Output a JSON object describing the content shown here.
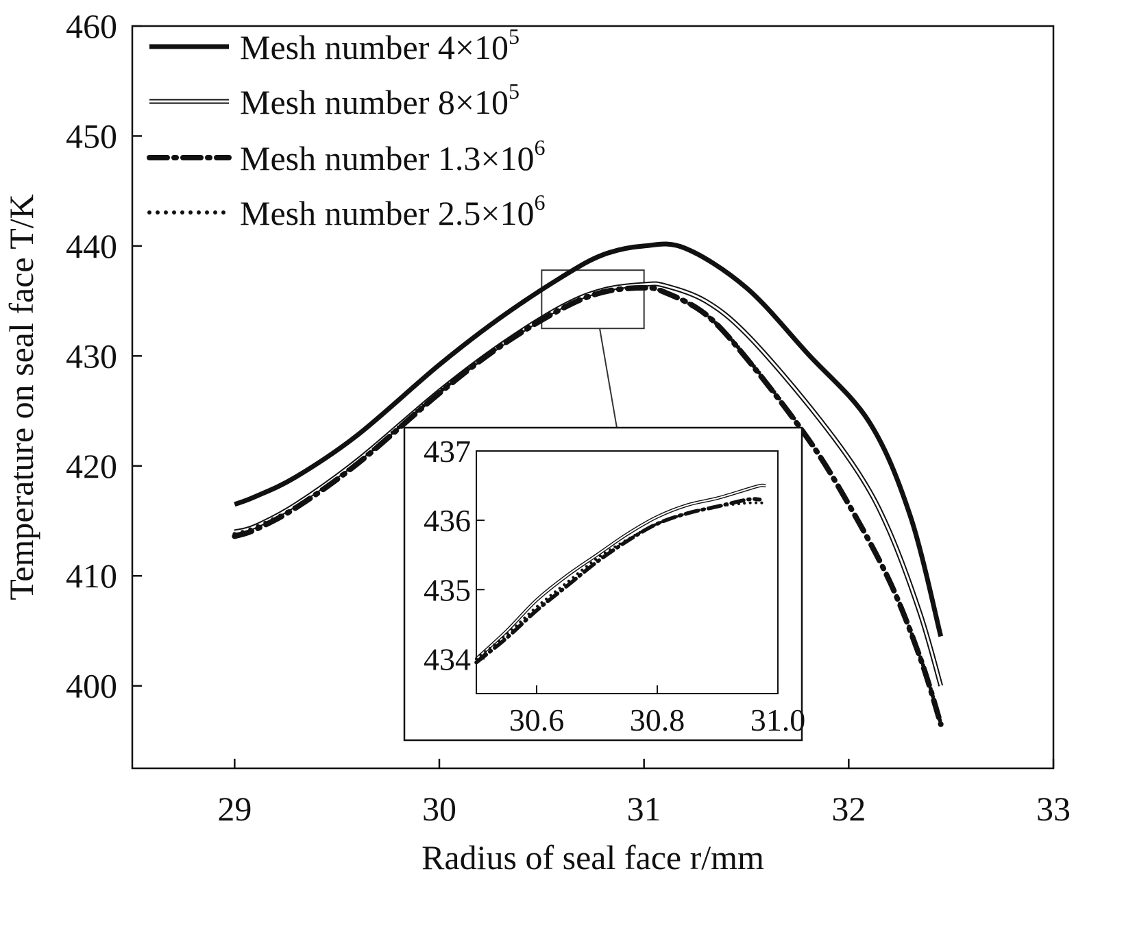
{
  "chart_data": {
    "type": "line",
    "xlabel": "Radius of seal face r/mm",
    "ylabel": "Temperature on seal face T/K",
    "xlim": [
      28.5,
      33
    ],
    "ylim": [
      392.5,
      460
    ],
    "xticks": [
      "29",
      "30",
      "31",
      "32",
      "33"
    ],
    "yticks": [
      "400",
      "410",
      "420",
      "430",
      "440",
      "450",
      "460"
    ],
    "legend_position": "top-left",
    "series": [
      {
        "name": "Mesh number 4×10^5",
        "legend_label": "Mesh number 4×10",
        "legend_exponent": "5",
        "style": "solid-thick",
        "x": [
          29.0,
          29.1,
          29.3,
          29.6,
          30.0,
          30.3,
          30.6,
          30.8,
          31.0,
          31.2,
          31.5,
          31.8,
          32.1,
          32.3,
          32.45
        ],
        "y": [
          416.5,
          417.2,
          419.0,
          422.8,
          429.2,
          433.5,
          437.2,
          439.2,
          440.0,
          439.8,
          436.2,
          430.2,
          424.0,
          415.5,
          404.5
        ]
      },
      {
        "name": "Mesh number 8×10^5",
        "legend_label": "Mesh number 8×10",
        "legend_exponent": "5",
        "style": "double-line",
        "x": [
          29.0,
          29.1,
          29.3,
          29.6,
          30.0,
          30.3,
          30.6,
          30.8,
          31.0,
          31.1,
          31.3,
          31.5,
          31.8,
          32.05,
          32.2,
          32.35,
          32.45
        ],
        "y": [
          414.0,
          414.5,
          416.5,
          420.5,
          426.8,
          431.0,
          434.5,
          436.0,
          436.5,
          436.4,
          435.0,
          432.0,
          425.6,
          419.3,
          414.0,
          406.5,
          400.0
        ]
      },
      {
        "name": "Mesh number 1.3×10^6",
        "legend_label": "Mesh number 1.3×10",
        "legend_exponent": "6",
        "style": "dash-dot",
        "x": [
          29.0,
          29.1,
          29.3,
          29.6,
          30.0,
          30.3,
          30.6,
          30.8,
          31.0,
          31.1,
          31.3,
          31.5,
          31.8,
          32.0,
          32.2,
          32.35,
          32.45
        ],
        "y": [
          413.6,
          414.2,
          416.2,
          420.2,
          426.6,
          430.9,
          434.3,
          435.8,
          436.2,
          435.8,
          433.8,
          429.8,
          422.5,
          416.5,
          409.5,
          402.5,
          396.5
        ]
      },
      {
        "name": "Mesh number 2.5×10^6",
        "legend_label": "Mesh number 2.5×10",
        "legend_exponent": "6",
        "style": "dotted",
        "x": [
          29.0,
          29.1,
          29.3,
          29.6,
          30.0,
          30.3,
          30.6,
          30.8,
          31.0,
          31.1,
          31.3,
          31.5,
          31.8,
          32.0,
          32.2,
          32.35,
          32.45
        ],
        "y": [
          413.8,
          414.4,
          416.3,
          420.3,
          426.7,
          431.0,
          434.4,
          435.9,
          436.2,
          435.8,
          433.8,
          429.9,
          422.6,
          416.6,
          409.6,
          402.6,
          396.6
        ]
      }
    ],
    "inset": {
      "xlim": [
        30.5,
        31.0
      ],
      "ylim": [
        433.5,
        437
      ],
      "xticks": [
        "30.6",
        "30.8",
        "31.0"
      ],
      "yticks": [
        "434",
        "435",
        "436",
        "437"
      ],
      "zoom_region": {
        "x": [
          30.5,
          31.0
        ],
        "y": [
          432.5,
          437.8
        ]
      },
      "series": [
        {
          "style": "double-line",
          "x": [
            30.5,
            30.55,
            30.6,
            30.65,
            30.7,
            30.75,
            30.8,
            30.85,
            30.9,
            30.95,
            30.97,
            30.98
          ],
          "y": [
            434.0,
            434.4,
            434.85,
            435.2,
            435.5,
            435.8,
            436.05,
            436.22,
            436.32,
            436.45,
            436.5,
            436.5
          ]
        },
        {
          "style": "dash-dot",
          "x": [
            30.5,
            30.55,
            30.6,
            30.65,
            30.7,
            30.75,
            30.8,
            30.85,
            30.9,
            30.95,
            30.97
          ],
          "y": [
            433.95,
            434.3,
            434.7,
            435.05,
            435.4,
            435.7,
            435.95,
            436.1,
            436.2,
            436.3,
            436.3
          ]
        },
        {
          "style": "dotted",
          "x": [
            30.5,
            30.55,
            30.6,
            30.65,
            30.7,
            30.75,
            30.8,
            30.85,
            30.9,
            30.95,
            30.98
          ],
          "y": [
            434.0,
            434.35,
            434.75,
            435.1,
            435.45,
            435.72,
            435.95,
            436.1,
            436.2,
            436.25,
            436.25
          ]
        }
      ]
    }
  }
}
